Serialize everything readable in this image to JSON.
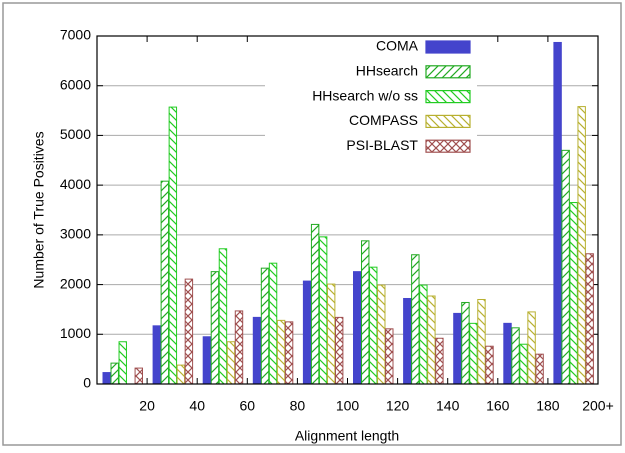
{
  "chart_data": {
    "type": "bar",
    "ylabel": "Number of True Positives",
    "xlabel": "Alignment length",
    "categories": [
      null,
      null,
      null,
      null,
      null,
      null,
      null,
      null,
      null,
      null
    ],
    "xticks": [
      20,
      40,
      60,
      80,
      100,
      120,
      140,
      160,
      180,
      {
        "value": 200,
        "label": "200+"
      }
    ],
    "ylim": [
      0,
      7000
    ],
    "yticks": [
      0,
      1000,
      2000,
      3000,
      4000,
      5000,
      6000,
      7000
    ],
    "grid": true,
    "legend": "upper right",
    "series": [
      {
        "name": "COMA",
        "color": "#4444cc",
        "hatch": "solid",
        "values": [
          230,
          1170,
          950,
          1340,
          2070,
          2260,
          1720,
          1420,
          1220,
          6870
        ]
      },
      {
        "name": "HHsearch",
        "color": "#22aa22",
        "hatch": "/",
        "values": [
          420,
          4080,
          2260,
          2330,
          3210,
          2880,
          2600,
          1640,
          1130,
          4700
        ]
      },
      {
        "name": "HHsearch w/o ss",
        "color": "#22cc22",
        "hatch": "\\",
        "values": [
          850,
          5570,
          2720,
          2430,
          2960,
          2350,
          1990,
          1220,
          800,
          3650
        ]
      },
      {
        "name": "COMPASS",
        "color": "#b8b030",
        "hatch": "\\",
        "values": [
          0,
          380,
          850,
          1280,
          2010,
          1990,
          1770,
          1700,
          1450,
          5580
        ]
      },
      {
        "name": "PSI-BLAST",
        "color": "#a05050",
        "hatch": "x",
        "values": [
          320,
          2110,
          1470,
          1250,
          1340,
          1110,
          920,
          760,
          600,
          2620
        ]
      }
    ]
  }
}
